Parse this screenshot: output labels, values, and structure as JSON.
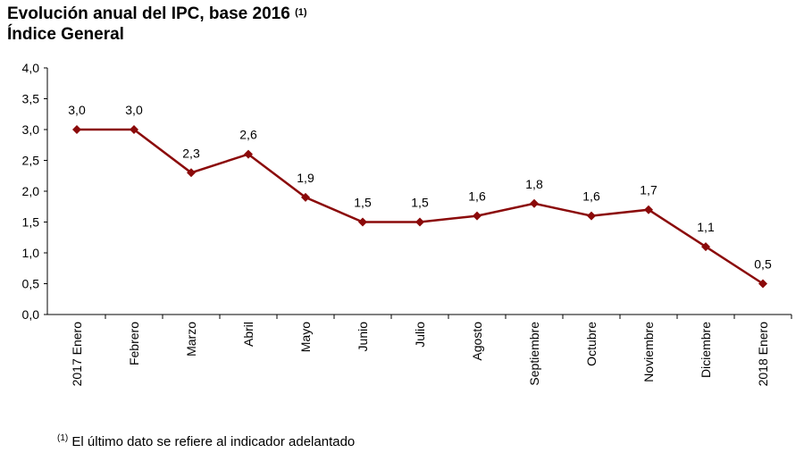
{
  "chart_data": {
    "type": "line",
    "title": "Evolución anual del IPC, base 2016",
    "title_note": "(1)",
    "subtitle": "Índice General",
    "categories": [
      "2017 Enero",
      "Febrero",
      "Marzo",
      "Abril",
      "Mayo",
      "Junio",
      "Julio",
      "Agosto",
      "Septiembre",
      "Octubre",
      "Noviembre",
      "Diciembre",
      "2018 Enero"
    ],
    "values": [
      3.0,
      3.0,
      2.3,
      2.6,
      1.9,
      1.5,
      1.5,
      1.6,
      1.8,
      1.6,
      1.7,
      1.1,
      0.5
    ],
    "data_labels": [
      "3,0",
      "3,0",
      "2,3",
      "2,6",
      "1,9",
      "1,5",
      "1,5",
      "1,6",
      "1,8",
      "1,6",
      "1,7",
      "1,1",
      "0,5"
    ],
    "ylim": [
      0,
      4
    ],
    "yticks": [
      "0,0",
      "0,5",
      "1,0",
      "1,5",
      "2,0",
      "2,5",
      "3,0",
      "3,5",
      "4,0"
    ],
    "grid": false,
    "marker": "diamond",
    "line_color": "#8b0a0a",
    "footnote_mark": "(1)",
    "footnote": "El último dato se refiere al indicador adelantado"
  }
}
